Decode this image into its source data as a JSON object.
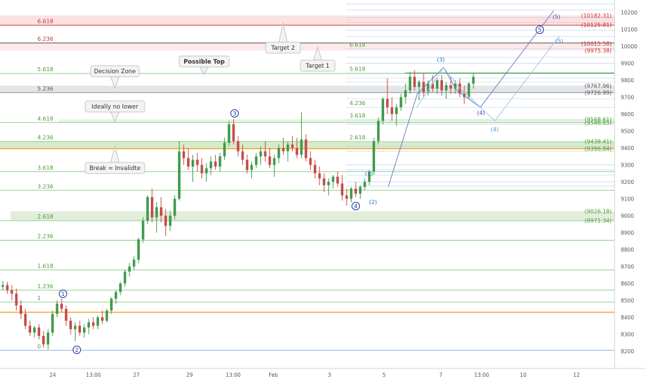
{
  "chart_data": {
    "type": "candlestick",
    "x_ticks": [
      "24",
      "13:00",
      "27",
      "29",
      "13:00",
      "Feb",
      "3",
      "5",
      "7",
      "13:00",
      "10",
      "12"
    ],
    "y_ticks": [
      8200,
      8300,
      8400,
      8500,
      8600,
      8700,
      8800,
      8900,
      9000,
      9100,
      9200,
      9300,
      9400,
      9500,
      9600,
      9700,
      9800,
      9900,
      10000,
      10100,
      10200
    ],
    "ylim": [
      8150,
      10240
    ],
    "price_tags": [
      {
        "label": "(10182.31)",
        "value": 10182.31,
        "color": "#d03030"
      },
      {
        "label": "(10125.81)",
        "value": 10125.81,
        "color": "#d03030"
      },
      {
        "label": "(10015.58)",
        "value": 10015.58,
        "color": "#d03030"
      },
      {
        "label": "(9975.38)",
        "value": 9975.38,
        "color": "#d03030"
      },
      {
        "label": "(9767.96)",
        "value": 9767.96,
        "color": "#555555"
      },
      {
        "label": "(9726.99)",
        "value": 9726.99,
        "color": "#555555"
      },
      {
        "label": "(9568.61)",
        "value": 9568.61,
        "color": "#4a9a30"
      },
      {
        "label": "(9548.65)",
        "value": 9548.65,
        "color": "#4a9a30"
      },
      {
        "label": "(9438.41)",
        "value": 9438.41,
        "color": "#4a9a30"
      },
      {
        "label": "(9396.84)",
        "value": 9396.84,
        "color": "#4a9a30"
      },
      {
        "label": "(9026.18)",
        "value": 9026.18,
        "color": "#4a9a30"
      },
      {
        "label": "(8971.34)",
        "value": 8971.34,
        "color": "#4a9a30"
      }
    ],
    "fib_levels": [
      {
        "label": "0",
        "value": 8205
      },
      {
        "label": "1",
        "value": 8490
      },
      {
        "label": "1.236",
        "value": 8560
      },
      {
        "label": "1.618",
        "value": 8680
      },
      {
        "label": "2.236",
        "value": 8855
      },
      {
        "label": "2.618",
        "value": 8971
      },
      {
        "label": "3.236",
        "value": 9150
      },
      {
        "label": "3.618",
        "value": 9260
      },
      {
        "label": "4.236",
        "value": 9438
      },
      {
        "label": "4.618",
        "value": 9550
      },
      {
        "label": "5.236",
        "value": 9727
      },
      {
        "label": "5.618",
        "value": 9840
      },
      {
        "label": "6.236",
        "value": 10020
      },
      {
        "label": "6.618",
        "value": 10125
      }
    ],
    "fib2_levels": [
      {
        "label": "6.618",
        "value": 9985
      },
      {
        "label": "5.618",
        "value": 9842
      },
      {
        "label": "4.236",
        "value": 9640
      },
      {
        "label": "3.618",
        "value": 9567
      },
      {
        "label": "2.618",
        "value": 9438
      }
    ],
    "annotations": [
      {
        "text": "Decision Zone"
      },
      {
        "text": "Possible Top"
      },
      {
        "text": "Ideally no lower"
      },
      {
        "text": "Break = Invalidte"
      },
      {
        "text": "Target 2"
      },
      {
        "text": "Target 1"
      }
    ],
    "wave_labels": [
      "1",
      "2",
      "3",
      "4",
      "5",
      "(1)",
      "(2)",
      "(3)",
      "(4)",
      "(5)",
      "(4)",
      "(5)"
    ],
    "candles": [
      [
        8580,
        8615,
        8560,
        8590
      ],
      [
        8590,
        8610,
        8540,
        8560
      ],
      [
        8560,
        8590,
        8500,
        8540
      ],
      [
        8540,
        8570,
        8440,
        8470
      ],
      [
        8470,
        8500,
        8390,
        8420
      ],
      [
        8420,
        8450,
        8330,
        8350
      ],
      [
        8350,
        8380,
        8290,
        8310
      ],
      [
        8310,
        8350,
        8280,
        8340
      ],
      [
        8340,
        8360,
        8270,
        8290
      ],
      [
        8290,
        8320,
        8220,
        8240
      ],
      [
        8240,
        8330,
        8210,
        8310
      ],
      [
        8310,
        8440,
        8290,
        8420
      ],
      [
        8420,
        8500,
        8400,
        8480
      ],
      [
        8480,
        8510,
        8430,
        8450
      ],
      [
        8450,
        8470,
        8350,
        8380
      ],
      [
        8380,
        8400,
        8300,
        8330
      ],
      [
        8330,
        8370,
        8260,
        8350
      ],
      [
        8350,
        8380,
        8290,
        8310
      ],
      [
        8310,
        8360,
        8280,
        8340
      ],
      [
        8340,
        8390,
        8300,
        8370
      ],
      [
        8370,
        8400,
        8330,
        8350
      ],
      [
        8350,
        8410,
        8330,
        8400
      ],
      [
        8400,
        8440,
        8360,
        8380
      ],
      [
        8380,
        8450,
        8370,
        8440
      ],
      [
        8440,
        8520,
        8420,
        8510
      ],
      [
        8510,
        8560,
        8480,
        8550
      ],
      [
        8550,
        8610,
        8530,
        8600
      ],
      [
        8600,
        8680,
        8580,
        8670
      ],
      [
        8670,
        8720,
        8640,
        8700
      ],
      [
        8700,
        8760,
        8680,
        8740
      ],
      [
        8740,
        8870,
        8720,
        8860
      ],
      [
        8860,
        8990,
        8840,
        8970
      ],
      [
        8970,
        9120,
        8950,
        9110
      ],
      [
        9110,
        9160,
        8960,
        8990
      ],
      [
        8990,
        9080,
        8900,
        9050
      ],
      [
        9050,
        9110,
        8960,
        9000
      ],
      [
        9000,
        9040,
        8880,
        8940
      ],
      [
        8940,
        9030,
        8910,
        9000
      ],
      [
        9000,
        9120,
        8980,
        9100
      ],
      [
        9100,
        9440,
        9090,
        9380
      ],
      [
        9380,
        9420,
        9300,
        9340
      ],
      [
        9340,
        9400,
        9270,
        9290
      ],
      [
        9290,
        9360,
        9200,
        9330
      ],
      [
        9330,
        9370,
        9260,
        9300
      ],
      [
        9300,
        9340,
        9220,
        9250
      ],
      [
        9250,
        9310,
        9200,
        9280
      ],
      [
        9280,
        9350,
        9240,
        9320
      ],
      [
        9320,
        9360,
        9270,
        9290
      ],
      [
        9290,
        9370,
        9260,
        9350
      ],
      [
        9350,
        9460,
        9330,
        9430
      ],
      [
        9430,
        9560,
        9410,
        9540
      ],
      [
        9540,
        9570,
        9420,
        9440
      ],
      [
        9440,
        9470,
        9350,
        9380
      ],
      [
        9380,
        9420,
        9300,
        9330
      ],
      [
        9330,
        9360,
        9250,
        9270
      ],
      [
        9270,
        9320,
        9220,
        9300
      ],
      [
        9300,
        9370,
        9280,
        9350
      ],
      [
        9350,
        9410,
        9300,
        9380
      ],
      [
        9380,
        9440,
        9320,
        9350
      ],
      [
        9350,
        9400,
        9280,
        9300
      ],
      [
        9300,
        9360,
        9230,
        9340
      ],
      [
        9340,
        9420,
        9310,
        9400
      ],
      [
        9400,
        9460,
        9360,
        9380
      ],
      [
        9380,
        9440,
        9320,
        9420
      ],
      [
        9420,
        9470,
        9380,
        9400
      ],
      [
        9400,
        9460,
        9340,
        9360
      ],
      [
        9360,
        9610,
        9340,
        9450
      ],
      [
        9450,
        9480,
        9320,
        9340
      ],
      [
        9340,
        9380,
        9270,
        9300
      ],
      [
        9300,
        9330,
        9220,
        9250
      ],
      [
        9250,
        9290,
        9180,
        9220
      ],
      [
        9220,
        9250,
        9140,
        9180
      ],
      [
        9180,
        9220,
        9120,
        9200
      ],
      [
        9200,
        9240,
        9160,
        9230
      ],
      [
        9230,
        9260,
        9170,
        9190
      ],
      [
        9190,
        9240,
        9090,
        9120
      ],
      [
        9120,
        9160,
        9060,
        9100
      ],
      [
        9100,
        9170,
        9080,
        9160
      ],
      [
        9160,
        9200,
        9110,
        9130
      ],
      [
        9130,
        9180,
        9100,
        9170
      ],
      [
        9170,
        9220,
        9150,
        9200
      ],
      [
        9200,
        9270,
        9180,
        9260
      ],
      [
        9260,
        9460,
        9240,
        9440
      ],
      [
        9440,
        9580,
        9420,
        9560
      ],
      [
        9560,
        9700,
        9540,
        9690
      ],
      [
        9690,
        9810,
        9600,
        9640
      ],
      [
        9640,
        9700,
        9560,
        9600
      ],
      [
        9600,
        9660,
        9530,
        9640
      ],
      [
        9640,
        9720,
        9620,
        9700
      ],
      [
        9700,
        9780,
        9660,
        9740
      ],
      [
        9740,
        9850,
        9720,
        9820
      ],
      [
        9820,
        9860,
        9740,
        9760
      ],
      [
        9760,
        9800,
        9680,
        9790
      ],
      [
        9790,
        9840,
        9700,
        9730
      ],
      [
        9730,
        9800,
        9710,
        9780
      ],
      [
        9780,
        9830,
        9730,
        9750
      ],
      [
        9750,
        9810,
        9720,
        9800
      ],
      [
        9800,
        9830,
        9710,
        9740
      ],
      [
        9740,
        9790,
        9690,
        9770
      ],
      [
        9770,
        9820,
        9720,
        9750
      ],
      [
        9750,
        9800,
        9720,
        9780
      ],
      [
        9780,
        9810,
        9700,
        9720
      ],
      [
        9720,
        9770,
        9660,
        9700
      ],
      [
        9700,
        9790,
        9690,
        9780
      ],
      [
        9780,
        9840,
        9750,
        9820
      ]
    ]
  }
}
